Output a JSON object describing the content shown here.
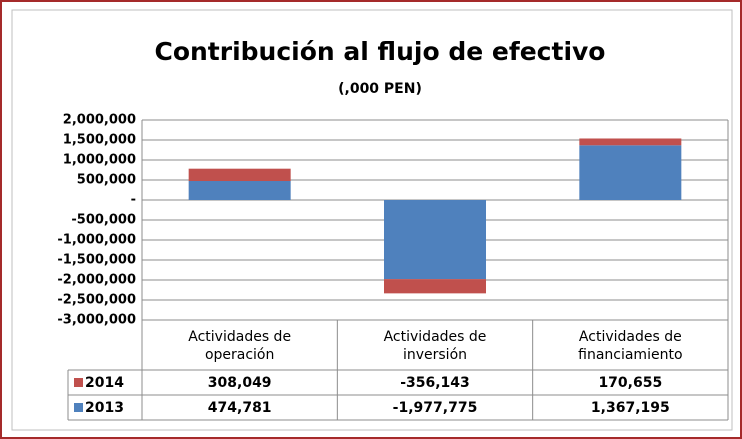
{
  "chart_data": {
    "type": "bar",
    "stacked": true,
    "title": "Contribución al flujo de efectivo",
    "subtitle": "(,000 PEN)",
    "categories": [
      "Actividades de operación",
      "Actividades de inversión",
      "Actividades de financiamiento"
    ],
    "series": [
      {
        "name": "2014",
        "color": "#c0504d",
        "values": [
          308049,
          -356143,
          170655
        ],
        "value_labels": [
          "308,049",
          "-356,143",
          "170,655"
        ]
      },
      {
        "name": "2013",
        "color": "#4f81bd",
        "values": [
          474781,
          -1977775,
          1367195
        ],
        "value_labels": [
          "474,781",
          "-1,977,775",
          "1,367,195"
        ]
      }
    ],
    "ylim": [
      -3000000,
      2000000
    ],
    "yticks": [
      {
        "value": -3000000,
        "label": "-3,000,000"
      },
      {
        "value": -2500000,
        "label": "-2,500,000"
      },
      {
        "value": -2000000,
        "label": "-2,000,000"
      },
      {
        "value": -1500000,
        "label": "-1,500,000"
      },
      {
        "value": -1000000,
        "label": "-1,000,000"
      },
      {
        "value": -500000,
        "label": "-500,000"
      },
      {
        "value": 0,
        "label": "-"
      },
      {
        "value": 500000,
        "label": "500,000"
      },
      {
        "value": 1000000,
        "label": "1,000,000"
      },
      {
        "value": 1500000,
        "label": "1,500,000"
      },
      {
        "value": 2000000,
        "label": "2,000,000"
      }
    ],
    "grid": true
  }
}
